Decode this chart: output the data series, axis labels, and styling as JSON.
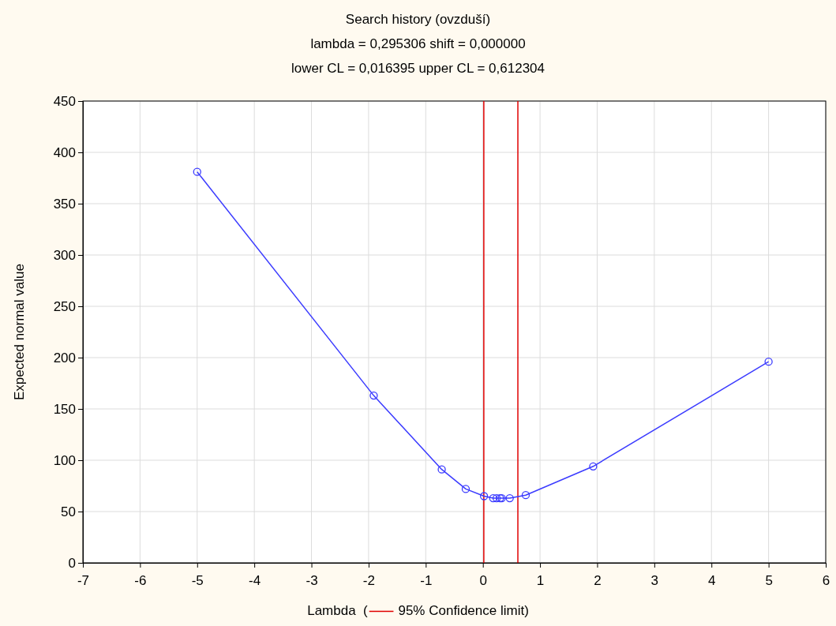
{
  "chart_data": {
    "type": "line",
    "title": "Search history (ovzduší)",
    "subtitle": "lambda = 0,295306 shift = 0,000000\nlower CL = 0,016395 upper CL = 0,612304",
    "xlabel": "Lambda  (",
    "ylabel": "Expected normal value",
    "x": [
      -5,
      -1.91,
      -0.72,
      -0.3,
      0.02,
      0.18,
      0.24,
      0.3,
      0.33,
      0.47,
      0.75,
      1.93,
      5
    ],
    "series": [
      {
        "color": "#3b3bff",
        "values": [
          381,
          163,
          91,
          72,
          65,
          63,
          63,
          63,
          63,
          63,
          66,
          94,
          196
        ]
      }
    ],
    "xlim": [
      -7,
      6
    ],
    "xticks": [
      -7,
      -6,
      -5,
      -4,
      -3,
      -2,
      -1,
      0,
      1,
      2,
      3,
      4,
      5,
      6
    ],
    "ylim": [
      0,
      450
    ],
    "yticks": [
      0,
      50,
      100,
      150,
      200,
      250,
      300,
      350,
      400,
      450
    ],
    "ref_lines": [
      {
        "axis": "x",
        "value": 0.016395,
        "label": "95% Confidence limit)",
        "color": "#e00000"
      },
      {
        "axis": "x",
        "value": 0.612304,
        "color": "#e00000"
      }
    ],
    "grid": true,
    "marker": "circle",
    "line_style": "solid"
  }
}
